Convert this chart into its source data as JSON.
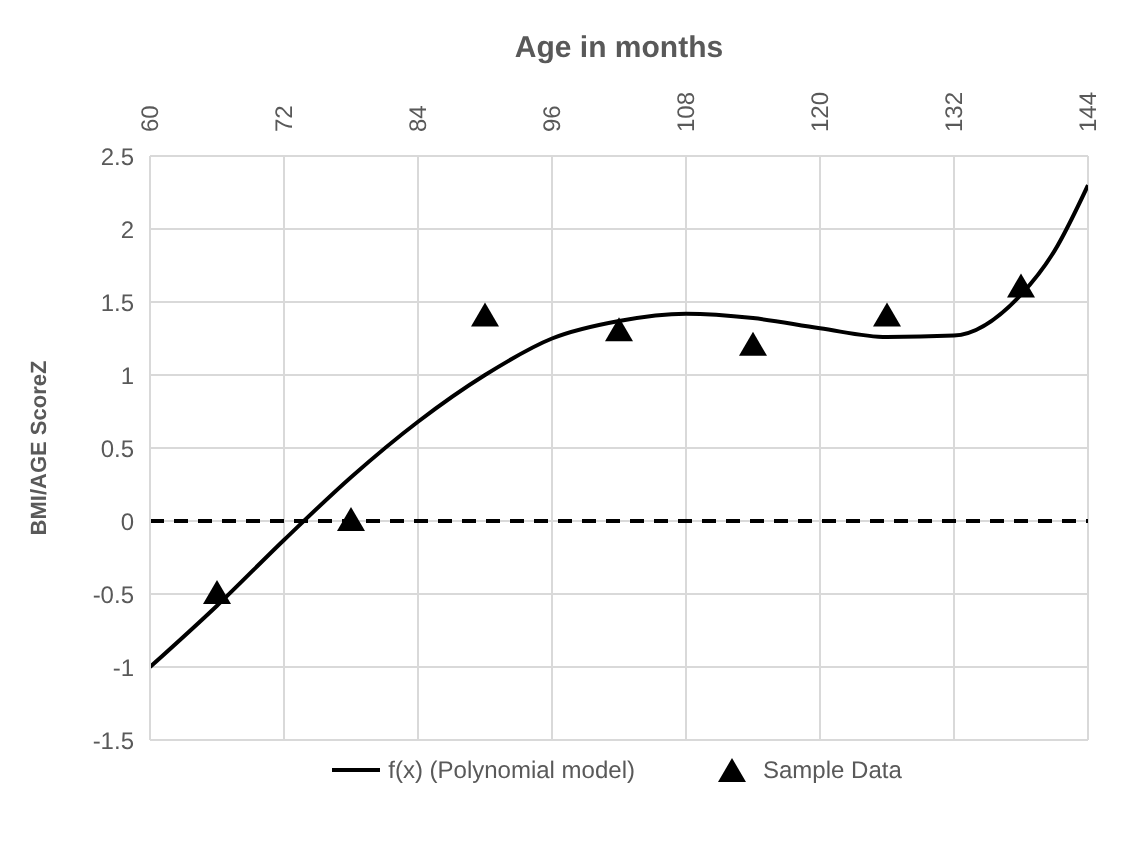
{
  "chart_data": {
    "type": "line",
    "xlabel": "Age in months",
    "ylabel": "BMI/AGE ScoreZ",
    "xlim": [
      60,
      144
    ],
    "xticks": [
      60,
      72,
      84,
      96,
      108,
      120,
      132,
      144
    ],
    "ylim": [
      -1.5,
      2.5
    ],
    "yticks": [
      -1.5,
      -1,
      -0.5,
      0,
      0.5,
      1,
      1.5,
      2,
      2.5
    ],
    "grid": true,
    "legend": "bottom",
    "ref_lines": [
      {
        "axis": "y",
        "value": 0,
        "color": "#000000",
        "line_style": "dashed"
      }
    ],
    "series": [
      {
        "name": "f(x) (Polynomial model)",
        "color": "#000000",
        "marker": "none",
        "line_style": "solid",
        "x": [
          60,
          66,
          72,
          78,
          84,
          90,
          96,
          102,
          108,
          114,
          120,
          126,
          132,
          138,
          141,
          144
        ],
        "values": [
          -1.0,
          -0.58,
          -0.13,
          0.3,
          0.68,
          1.0,
          1.25,
          1.37,
          1.42,
          1.39,
          1.32,
          1.26,
          1.27,
          1.55,
          1.85,
          2.3
        ]
      },
      {
        "name": "Sample Data",
        "type": "scatter",
        "color": "#000000",
        "marker": "triangle",
        "x": [
          66,
          78,
          90,
          102,
          114,
          126,
          138
        ],
        "values": [
          -0.5,
          0,
          1.4,
          1.3,
          1.2,
          1.4,
          1.6
        ]
      }
    ]
  }
}
